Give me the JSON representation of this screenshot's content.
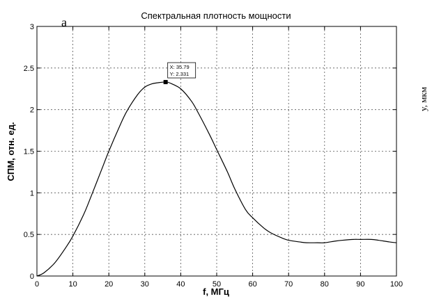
{
  "figure_label": "а",
  "side_label": "y, мкм",
  "chart_data": {
    "type": "line",
    "title": "Спектральная плотность мощности",
    "xlabel": "f, МГц",
    "ylabel": "СПМ, отн. ед.",
    "xlim": [
      0,
      100
    ],
    "ylim": [
      0,
      3
    ],
    "xticks": [
      0,
      10,
      20,
      30,
      40,
      50,
      60,
      70,
      80,
      90,
      100
    ],
    "yticks": [
      0,
      0.5,
      1,
      1.5,
      2,
      2.5,
      3
    ],
    "xtick_labels": [
      "0",
      "10",
      "20",
      "30",
      "40",
      "50",
      "60",
      "70",
      "80",
      "90",
      "100"
    ],
    "ytick_labels": [
      "0",
      "0.5",
      "1",
      "1.5",
      "2",
      "2.5",
      "3"
    ],
    "grid": true,
    "series": [
      {
        "x": [
          0,
          2,
          5,
          8,
          10,
          13,
          15,
          18,
          20,
          23,
          25,
          28,
          30,
          32,
          34,
          35.79,
          37,
          40,
          43,
          45,
          48,
          50,
          53,
          55,
          58,
          60,
          63,
          65,
          68,
          70,
          73,
          75,
          78,
          80,
          83,
          85,
          88,
          90,
          93,
          95,
          98,
          100
        ],
        "y": [
          0,
          0.04,
          0.16,
          0.34,
          0.48,
          0.74,
          0.95,
          1.28,
          1.5,
          1.8,
          1.98,
          2.18,
          2.27,
          2.31,
          2.325,
          2.331,
          2.32,
          2.25,
          2.1,
          1.95,
          1.7,
          1.52,
          1.25,
          1.05,
          0.8,
          0.7,
          0.58,
          0.52,
          0.46,
          0.43,
          0.41,
          0.4,
          0.4,
          0.4,
          0.42,
          0.43,
          0.44,
          0.44,
          0.44,
          0.43,
          0.41,
          0.4
        ]
      }
    ],
    "datatip": {
      "x": 35.79,
      "y": 2.331,
      "x_text": "X: 35.79",
      "y_text": "Y: 2.331"
    }
  }
}
